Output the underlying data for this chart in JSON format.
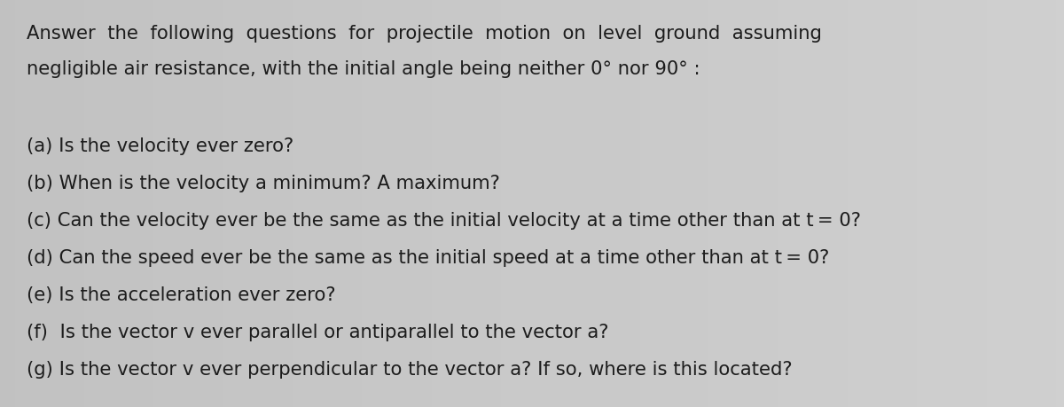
{
  "bg_color": "#c9c9c9",
  "text_color": "#1c1c1c",
  "line1": "Answer  the  following  questions  for  projectile  motion  on  level  ground  assuming",
  "line2": "negligible air resistance, with the initial angle being neither 0° nor 90° :",
  "items": [
    "(a) Is the velocity ever zero?",
    "(b) When is the velocity a minimum? A maximum?",
    "(c) Can the velocity ever be the same as the initial velocity at a time other than at t = 0?",
    "(d) Can the speed ever be the same as the initial speed at a time other than at t = 0?",
    "(e) Is the acceleration ever zero?",
    "(f)  Is the vector v ever parallel or antiparallel to the vector a?",
    "(g) Is the vector v ever perpendicular to the vector a? If so, where is this located?"
  ],
  "title_fontsize": 15.2,
  "item_fontsize": 15.2,
  "fig_width": 12.0,
  "fig_height": 4.59,
  "dpi": 100
}
